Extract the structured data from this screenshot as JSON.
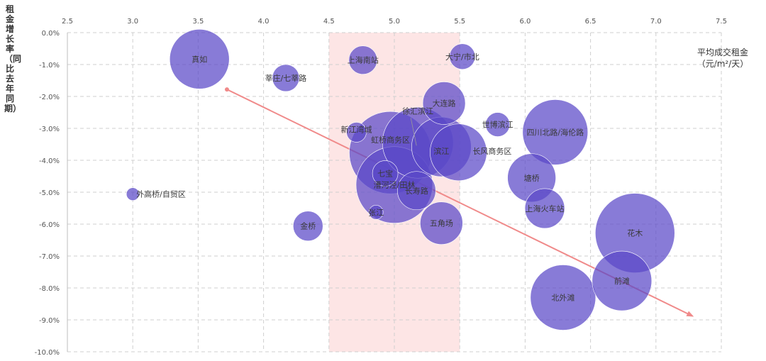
{
  "chart_data": {
    "type": "bubble",
    "ylabel": "租金增长率（同比去年同期）",
    "xlabel_line1": "平均成交租金",
    "xlabel_line2": "（元/m²/天）",
    "x_ticks": [
      "2.5",
      "3.0",
      "3.5",
      "4.0",
      "4.5",
      "5.0",
      "5.5",
      "6.0",
      "6.5",
      "7.0",
      "7.5"
    ],
    "y_ticks": [
      "0.0%",
      "-1.0%",
      "-2.0%",
      "-3.0%",
      "-4.0%",
      "-5.0%",
      "-6.0%",
      "-7.0%",
      "-8.0%",
      "-9.0%",
      "-10.0%"
    ],
    "xlim": [
      2.5,
      7.5
    ],
    "ylim": [
      -10.0,
      0.0
    ],
    "grid": true,
    "highlight_band": [
      4.5,
      5.5
    ],
    "trend_line": {
      "from": [
        3.72,
        -1.78
      ],
      "to": [
        7.28,
        -8.88
      ]
    },
    "colors": {
      "bubble": "#5a48c8",
      "band": "#fde0e0",
      "trend": "#f08a8a"
    },
    "points": [
      {
        "name": "真如",
        "x": 3.51,
        "y": -0.83,
        "size": 42
      },
      {
        "name": "上海南站",
        "x": 4.76,
        "y": -0.86,
        "size": 20
      },
      {
        "name": "大宁/市北",
        "x": 5.52,
        "y": -0.75,
        "size": 18
      },
      {
        "name": "莘庄/七莘路",
        "x": 4.17,
        "y": -1.42,
        "size": 19
      },
      {
        "name": "大连路",
        "x": 5.38,
        "y": -2.21,
        "size": 30
      },
      {
        "name": "徐汇滨江",
        "x": 5.18,
        "y": -3.45,
        "size": 50
      },
      {
        "name": "世博滨江",
        "x": 5.79,
        "y": -2.88,
        "size": 17
      },
      {
        "name": "四川北路/海伦路",
        "x": 6.23,
        "y": -3.12,
        "size": 46
      },
      {
        "name": "新江湾城",
        "x": 4.71,
        "y": -3.12,
        "size": 14
      },
      {
        "name": "虹桥商务区",
        "x": 4.97,
        "y": -3.76,
        "size": 58
      },
      {
        "name": "滨江",
        "x": 5.36,
        "y": -3.58,
        "size": 42
      },
      {
        "name": "长风商务区",
        "x": 5.49,
        "y": -3.75,
        "size": 40
      },
      {
        "name": "七宝",
        "x": 4.93,
        "y": -4.41,
        "size": 18
      },
      {
        "name": "塘桥",
        "x": 6.05,
        "y": -4.55,
        "size": 34
      },
      {
        "name": "外高桥/自贸区",
        "x": 3.0,
        "y": -5.06,
        "size": 9
      },
      {
        "name": "漕河泾/田林",
        "x": 5.0,
        "y": -4.77,
        "size": 54
      },
      {
        "name": "长寿路",
        "x": 5.17,
        "y": -4.95,
        "size": 27
      },
      {
        "name": "上海火车站",
        "x": 6.15,
        "y": -5.51,
        "size": 28
      },
      {
        "name": "张江",
        "x": 4.86,
        "y": -5.63,
        "size": 10
      },
      {
        "name": "金桥",
        "x": 4.34,
        "y": -6.06,
        "size": 21
      },
      {
        "name": "五角场",
        "x": 5.36,
        "y": -5.97,
        "size": 30
      },
      {
        "name": "花木",
        "x": 6.84,
        "y": -6.28,
        "size": 56
      },
      {
        "name": "前滩",
        "x": 6.74,
        "y": -7.78,
        "size": 42
      },
      {
        "name": "北外滩",
        "x": 6.29,
        "y": -8.3,
        "size": 46
      }
    ]
  }
}
